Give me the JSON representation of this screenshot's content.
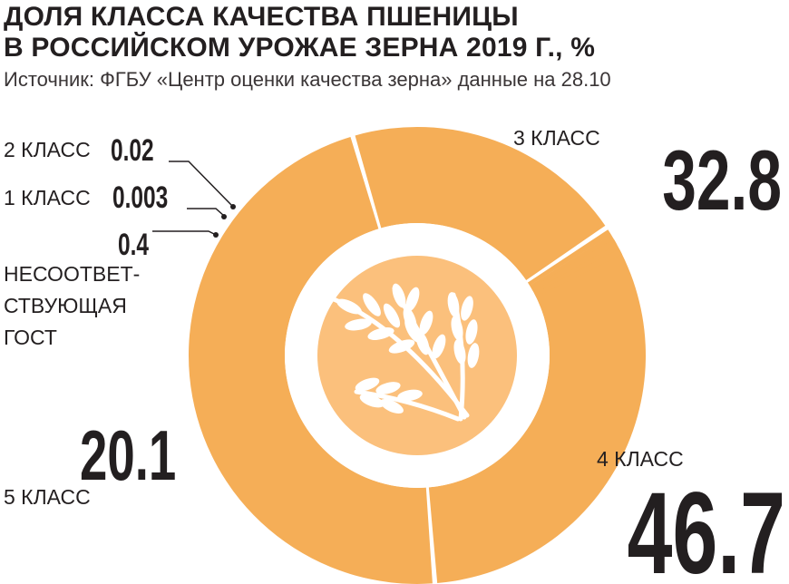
{
  "chart_data": {
    "type": "pie",
    "title": "ДОЛЯ КЛАССА КАЧЕСТВА ПШЕНИЦЫ\nВ РОССИЙСКОМ УРОЖАЕ ЗЕРНА 2019 Г., %",
    "subtitle": "Источник: ФГБУ «Центр оценки качества зерна» данные на 28.10",
    "slices": [
      {
        "label": "3 КЛАСС",
        "value": 32.8,
        "value_text": "32.8"
      },
      {
        "label": "4 КЛАСС",
        "value": 46.7,
        "value_text": "46.7"
      },
      {
        "label": "5 КЛАСС",
        "value": 20.1,
        "value_text": "20.1"
      },
      {
        "label": "НЕСООТВЕТ-\nСТВУЮЩАЯ\nГОСТ",
        "value": 0.4,
        "value_text": "0.4"
      },
      {
        "label": "1 КЛАСС",
        "value": 0.003,
        "value_text": "0.003"
      },
      {
        "label": "2 КЛАСС",
        "value": 0.02,
        "value_text": "0.02"
      }
    ],
    "colors": {
      "slice": "#f5ae57",
      "hole": "#fbc07c",
      "wheat": "#ffffff",
      "text": "#231f20"
    },
    "center_icon": "wheat-ears-icon"
  }
}
